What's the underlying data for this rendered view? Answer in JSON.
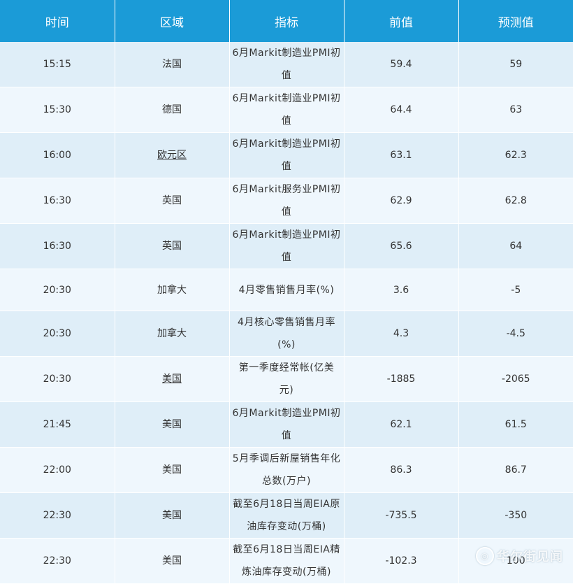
{
  "headers": [
    "时间",
    "区域",
    "指标",
    "前值",
    "预测值"
  ],
  "rows": [
    {
      "time": "15:15",
      "region": "法国",
      "indicator": "6月Markit制造业PMI初值",
      "prev": "59.4",
      "forecast": "59"
    },
    {
      "time": "15:30",
      "region": "德国",
      "indicator": "6月Markit制造业PMI初值",
      "prev": "64.4",
      "forecast": "63"
    },
    {
      "time": "16:00",
      "region": "欧元区",
      "indicator": "6月Markit制造业PMI初值",
      "prev": "63.1",
      "forecast": "62.3"
    },
    {
      "time": "16:30",
      "region": "英国",
      "indicator": "6月Markit服务业PMI初值",
      "prev": "62.9",
      "forecast": "62.8"
    },
    {
      "time": "16:30",
      "region": "英国",
      "indicator": "6月Markit制造业PMI初值",
      "prev": "65.6",
      "forecast": "64"
    },
    {
      "time": "20:30",
      "region": "加拿大",
      "indicator": "4月零售销售月率(%)",
      "prev": "3.6",
      "forecast": "-5"
    },
    {
      "time": "20:30",
      "region": "加拿大",
      "indicator": "4月核心零售销售月率(%)",
      "prev": "4.3",
      "forecast": "-4.5"
    },
    {
      "time": "20:30",
      "region": "美国",
      "indicator": "第一季度经常帐(亿美元)",
      "prev": "-1885",
      "forecast": "-2065"
    },
    {
      "time": "21:45",
      "region": "美国",
      "indicator": "6月Markit制造业PMI初值",
      "prev": "62.1",
      "forecast": "61.5"
    },
    {
      "time": "22:00",
      "region": "美国",
      "indicator": "5月季调后新屋销售年化总数(万户)",
      "prev": "86.3",
      "forecast": "86.7"
    },
    {
      "time": "22:30",
      "region": "美国",
      "indicator": "截至6月18日当周EIA原油库存变动(万桶)",
      "prev": "-735.5",
      "forecast": "-350"
    },
    {
      "time": "22:30",
      "region": "美国",
      "indicator": "截至6月18日当周EIA精炼油库存变动(万桶)",
      "prev": "-102.3",
      "forecast": "100"
    }
  ],
  "watermark": "华尔街见闻",
  "colors": {
    "header": "#1b9bd7",
    "row_odd": "#dfeef8",
    "row_even": "#eff7fd",
    "text": "#333333"
  }
}
